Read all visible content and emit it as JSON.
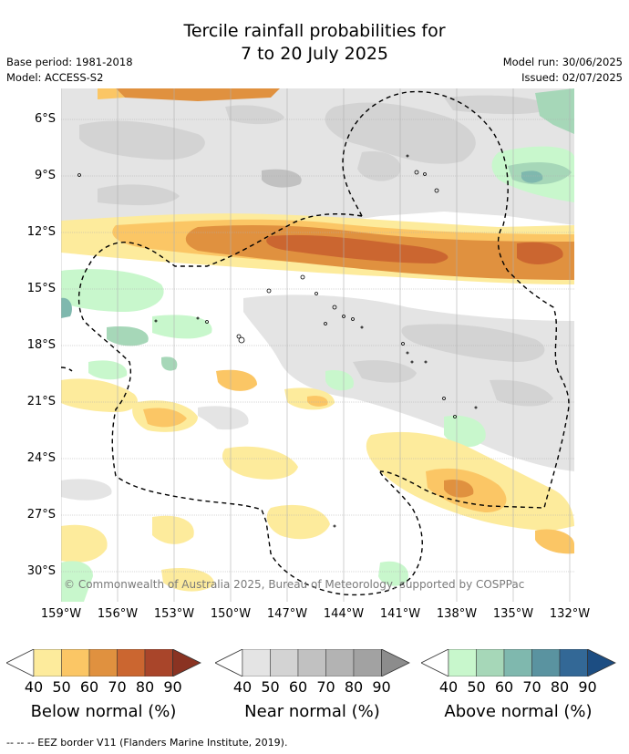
{
  "title_line1": "Tercile rainfall probabilities for",
  "title_line2": "7 to 20 July 2025",
  "base_period": "Base period: 1981-2018",
  "model": "Model: ACCESS-S2",
  "model_run": "Model run: 30/06/2025",
  "issued": "Issued: 02/07/2025",
  "copyright": "© Commonwealth of Australia 2025, Bureau of Meteorology, supported by COSPPac",
  "lat_labels": [
    "6°S",
    "9°S",
    "12°S",
    "15°S",
    "18°S",
    "21°S",
    "24°S",
    "27°S",
    "30°S"
  ],
  "lon_labels": [
    "159°W",
    "156°W",
    "153°W",
    "150°W",
    "147°W",
    "144°W",
    "141°W",
    "138°W",
    "135°W",
    "132°W"
  ],
  "colorbars": [
    {
      "title": "Below normal (%)",
      "ticks": [
        "40",
        "50",
        "60",
        "70",
        "80",
        "90"
      ],
      "colors": [
        "#fdeb9c",
        "#fbc665",
        "#e0913f",
        "#cb6630",
        "#a9452a",
        "#8a3322"
      ]
    },
    {
      "title": "Near normal (%)",
      "ticks": [
        "40",
        "50",
        "60",
        "70",
        "80",
        "90"
      ],
      "colors": [
        "#e4e4e4",
        "#d3d3d3",
        "#c1c1c1",
        "#b3b3b3",
        "#a2a2a2",
        "#8c8c8c"
      ]
    },
    {
      "title": "Above normal (%)",
      "ticks": [
        "40",
        "50",
        "60",
        "70",
        "80",
        "90"
      ],
      "colors": [
        "#c8f7cc",
        "#a6d7b8",
        "#7fb8ae",
        "#5a93a0",
        "#336896",
        "#1c4d82"
      ]
    }
  ],
  "footer": "--  --  -- EEZ border V11 (Flanders Marine Institute, 2019)."
}
